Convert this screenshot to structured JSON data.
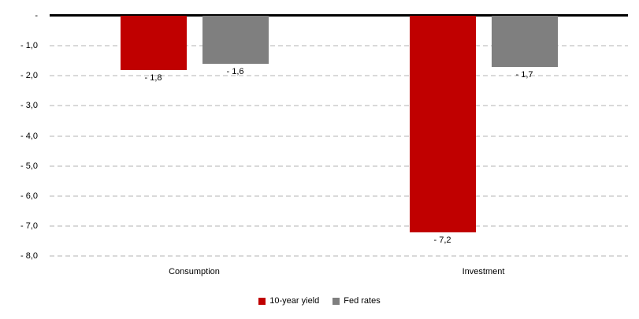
{
  "chart_data": {
    "type": "bar",
    "categories": [
      "Consumption",
      "Investment"
    ],
    "series": [
      {
        "name": "10-year yield",
        "color": "#c00000",
        "values": [
          -1.8,
          -7.2
        ],
        "labels": [
          "- 1,8",
          "- 7,2"
        ]
      },
      {
        "name": "Fed rates",
        "color": "#7f7f7f",
        "values": [
          -1.6,
          -1.7
        ],
        "labels": [
          "- 1,6",
          "- 1,7"
        ]
      }
    ],
    "y_axis": {
      "min": -8,
      "max": 0,
      "step": 1,
      "tick_labels": [
        "-",
        "- 1,0",
        "- 2,0",
        "- 3,0",
        "- 4,0",
        "- 5,0",
        "- 6,0",
        "- 7,0",
        "- 8,0"
      ]
    },
    "title": "",
    "xlabel": "",
    "ylabel": "",
    "grid": "dashed-horizontal",
    "legend_position": "bottom",
    "colors": {
      "zero_line": "#000000",
      "gridline": "#d9d9d9",
      "text": "#000000",
      "background": "#ffffff"
    }
  }
}
